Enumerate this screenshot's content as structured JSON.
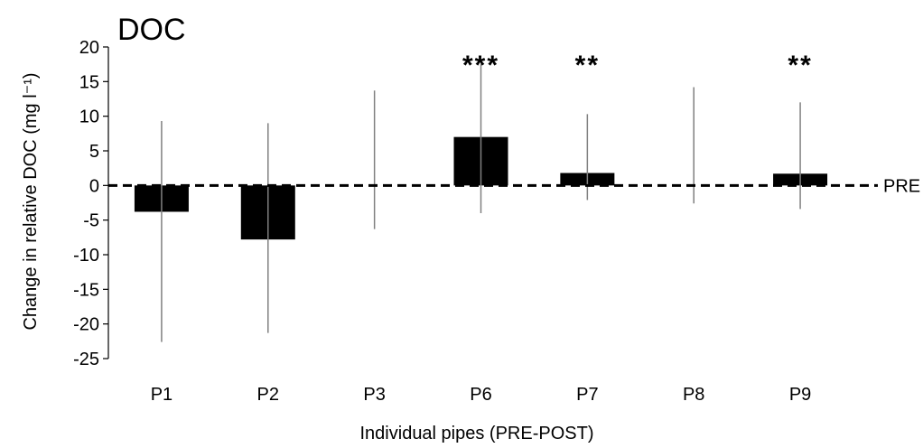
{
  "chart_data": {
    "type": "bar",
    "title": "DOC",
    "xlabel": "Individual pipes (PRE-POST)",
    "ylabel": "Change in relative DOC (mg l⁻¹)",
    "ylim": [
      -25,
      20
    ],
    "yticks": [
      20,
      15,
      10,
      5,
      0,
      -5,
      -10,
      -15,
      -20,
      -25
    ],
    "ytick_labels": [
      "20",
      "15",
      "10",
      "5",
      "0",
      "-5",
      "-10",
      "-15",
      "-20",
      "-25"
    ],
    "grid": false,
    "categories": [
      "P1",
      "P2",
      "P3",
      "P6",
      "P7",
      "P8",
      "P9"
    ],
    "values": [
      -3.8,
      -7.8,
      0,
      7.0,
      1.8,
      0,
      1.7
    ],
    "error_high": [
      9.3,
      9.0,
      13.7,
      17.5,
      10.3,
      14.2,
      12.0
    ],
    "error_low": [
      -22.6,
      -21.3,
      -6.3,
      -4.0,
      -2.1,
      -2.6,
      -3.4
    ],
    "significance": [
      "",
      "",
      "",
      "***",
      "**",
      "",
      "**"
    ],
    "reference_line": {
      "value": 0,
      "label": "PRE",
      "style": "dashed"
    },
    "bar_color": "#000000",
    "error_color": "#808080"
  }
}
